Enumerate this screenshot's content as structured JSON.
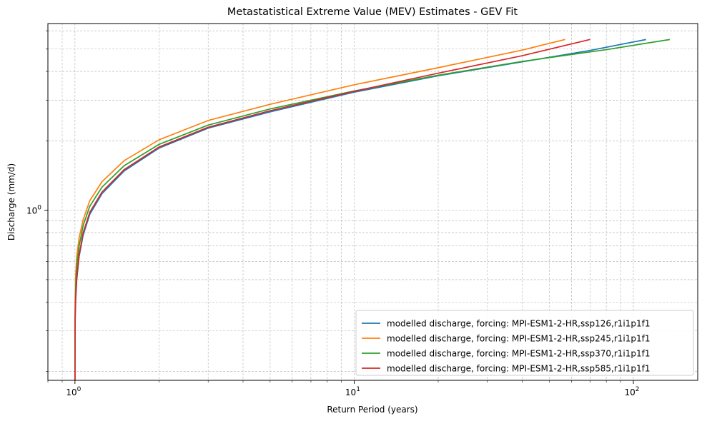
{
  "chart_data": {
    "type": "line",
    "title": "Metastatistical Extreme Value (MEV) Estimates - GEV Fit",
    "xlabel": "Return Period (years)",
    "ylabel": "Discharge (mm/d)",
    "xscale": "log",
    "yscale": "log",
    "xlim": [
      0.8,
      170
    ],
    "ylim": [
      0.183,
      6.45
    ],
    "x_tick_labels": [
      "10^0",
      "10^1",
      "10^2"
    ],
    "y_tick_labels": [
      "10^0"
    ],
    "grid": true,
    "legend_position": "lower-right",
    "series": [
      {
        "name": "modelled discharge, forcing: MPI-ESM1-2-HR,ssp126,r1i1p1f1",
        "color": "#1f77b4",
        "x": [
          1.0,
          1.0005,
          1.002,
          1.006,
          1.015,
          1.035,
          1.07,
          1.13,
          1.25,
          1.5,
          2.0,
          3.0,
          5.0,
          10,
          20,
          40,
          70,
          111
        ],
        "y": [
          0.183,
          0.26,
          0.34,
          0.41,
          0.5,
          0.63,
          0.78,
          0.96,
          1.18,
          1.48,
          1.86,
          2.27,
          2.67,
          3.25,
          3.83,
          4.4,
          4.93,
          5.5
        ]
      },
      {
        "name": "modelled discharge, forcing: MPI-ESM1-2-HR,ssp245,r1i1p1f1",
        "color": "#ff7f0e",
        "x": [
          1.0,
          1.0005,
          1.002,
          1.006,
          1.015,
          1.035,
          1.07,
          1.13,
          1.25,
          1.5,
          2.0,
          3.0,
          5.0,
          10,
          20,
          40,
          57
        ],
        "y": [
          0.183,
          0.3,
          0.42,
          0.52,
          0.63,
          0.76,
          0.91,
          1.1,
          1.33,
          1.64,
          2.02,
          2.45,
          2.88,
          3.5,
          4.15,
          4.95,
          5.5
        ]
      },
      {
        "name": "modelled discharge, forcing: MPI-ESM1-2-HR,ssp370,r1i1p1f1",
        "color": "#2ca02c",
        "x": [
          1.0,
          1.0005,
          1.002,
          1.006,
          1.015,
          1.035,
          1.07,
          1.13,
          1.25,
          1.5,
          2.0,
          3.0,
          5.0,
          10,
          20,
          40,
          80,
          135
        ],
        "y": [
          0.183,
          0.28,
          0.37,
          0.46,
          0.57,
          0.7,
          0.86,
          1.04,
          1.26,
          1.56,
          1.93,
          2.34,
          2.75,
          3.29,
          3.85,
          4.42,
          4.97,
          5.5
        ]
      },
      {
        "name": "modelled discharge, forcing: MPI-ESM1-2-HR,ssp585,r1i1p1f1",
        "color": "#d62728",
        "x": [
          1.0,
          1.0005,
          1.002,
          1.006,
          1.015,
          1.035,
          1.07,
          1.13,
          1.25,
          1.5,
          2.0,
          3.0,
          5.0,
          10,
          20,
          40,
          70
        ],
        "y": [
          0.183,
          0.26,
          0.35,
          0.42,
          0.51,
          0.64,
          0.8,
          0.98,
          1.2,
          1.5,
          1.88,
          2.29,
          2.7,
          3.28,
          3.93,
          4.68,
          5.5
        ]
      }
    ]
  }
}
